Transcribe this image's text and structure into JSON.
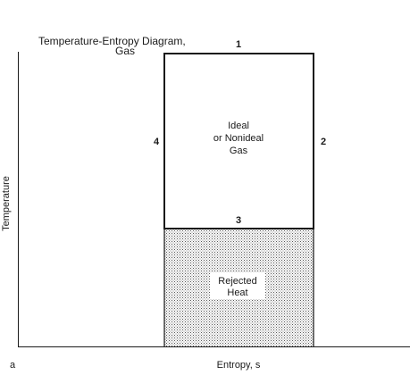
{
  "diagram": {
    "title_line1": "Temperature-Entropy Diagram,",
    "title_line2": "Gas",
    "state_1": "1",
    "state_2": "2",
    "state_3": "3",
    "state_4": "4",
    "cycle_line1": "Ideal",
    "cycle_line2": "or Nonideal",
    "cycle_line3": "Gas",
    "rejected_line1": "Rejected",
    "rejected_line2": "Heat",
    "x_axis_label": "Entropy, s",
    "y_axis_label": "Temperature",
    "panel_label": "a"
  },
  "colors": {
    "ink": "#1a1a1a",
    "stipple_dot": "#555555",
    "background": "#ffffff"
  }
}
